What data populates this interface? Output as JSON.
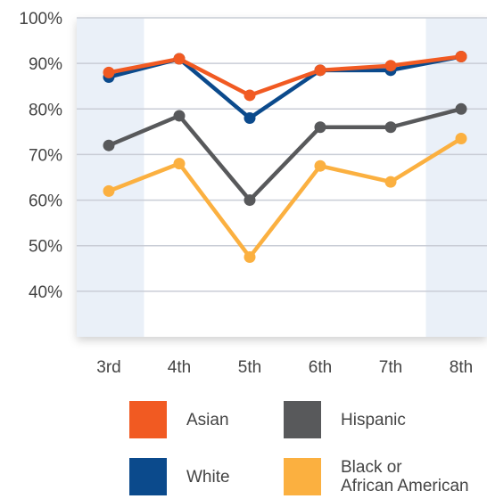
{
  "chart_data": {
    "type": "line",
    "categories": [
      "3rd",
      "4th",
      "5th",
      "6th",
      "7th",
      "8th"
    ],
    "ylim": [
      30,
      100
    ],
    "yticks": [
      40,
      50,
      60,
      70,
      80,
      90,
      100
    ],
    "ytick_labels": [
      "40%",
      "50%",
      "60%",
      "70%",
      "80%",
      "90%",
      "100%"
    ],
    "grid": true,
    "highlighted_categories": [
      "3rd",
      "8th"
    ],
    "legend_position": "bottom",
    "series": [
      {
        "name": "Asian",
        "color": "#F15A22",
        "values": [
          88,
          91,
          83,
          88.5,
          89.5,
          91.5
        ]
      },
      {
        "name": "White",
        "color": "#0B4A8C",
        "values": [
          87,
          91,
          78,
          88.5,
          88.5,
          91.5
        ]
      },
      {
        "name": "Hispanic",
        "color": "#58595B",
        "values": [
          72,
          78.5,
          60,
          76,
          76,
          80
        ]
      },
      {
        "name": "Black or African American",
        "color": "#FBB040",
        "values": [
          62,
          68,
          47.5,
          67.5,
          64,
          73.5
        ]
      }
    ]
  },
  "legend": {
    "items": [
      {
        "label_lines": [
          "Asian"
        ],
        "color": "#F15A22"
      },
      {
        "label_lines": [
          "Hispanic"
        ],
        "color": "#58595B"
      },
      {
        "label_lines": [
          "White"
        ],
        "color": "#0B4A8C"
      },
      {
        "label_lines": [
          "Black or",
          "African American"
        ],
        "color": "#FBB040"
      }
    ]
  }
}
